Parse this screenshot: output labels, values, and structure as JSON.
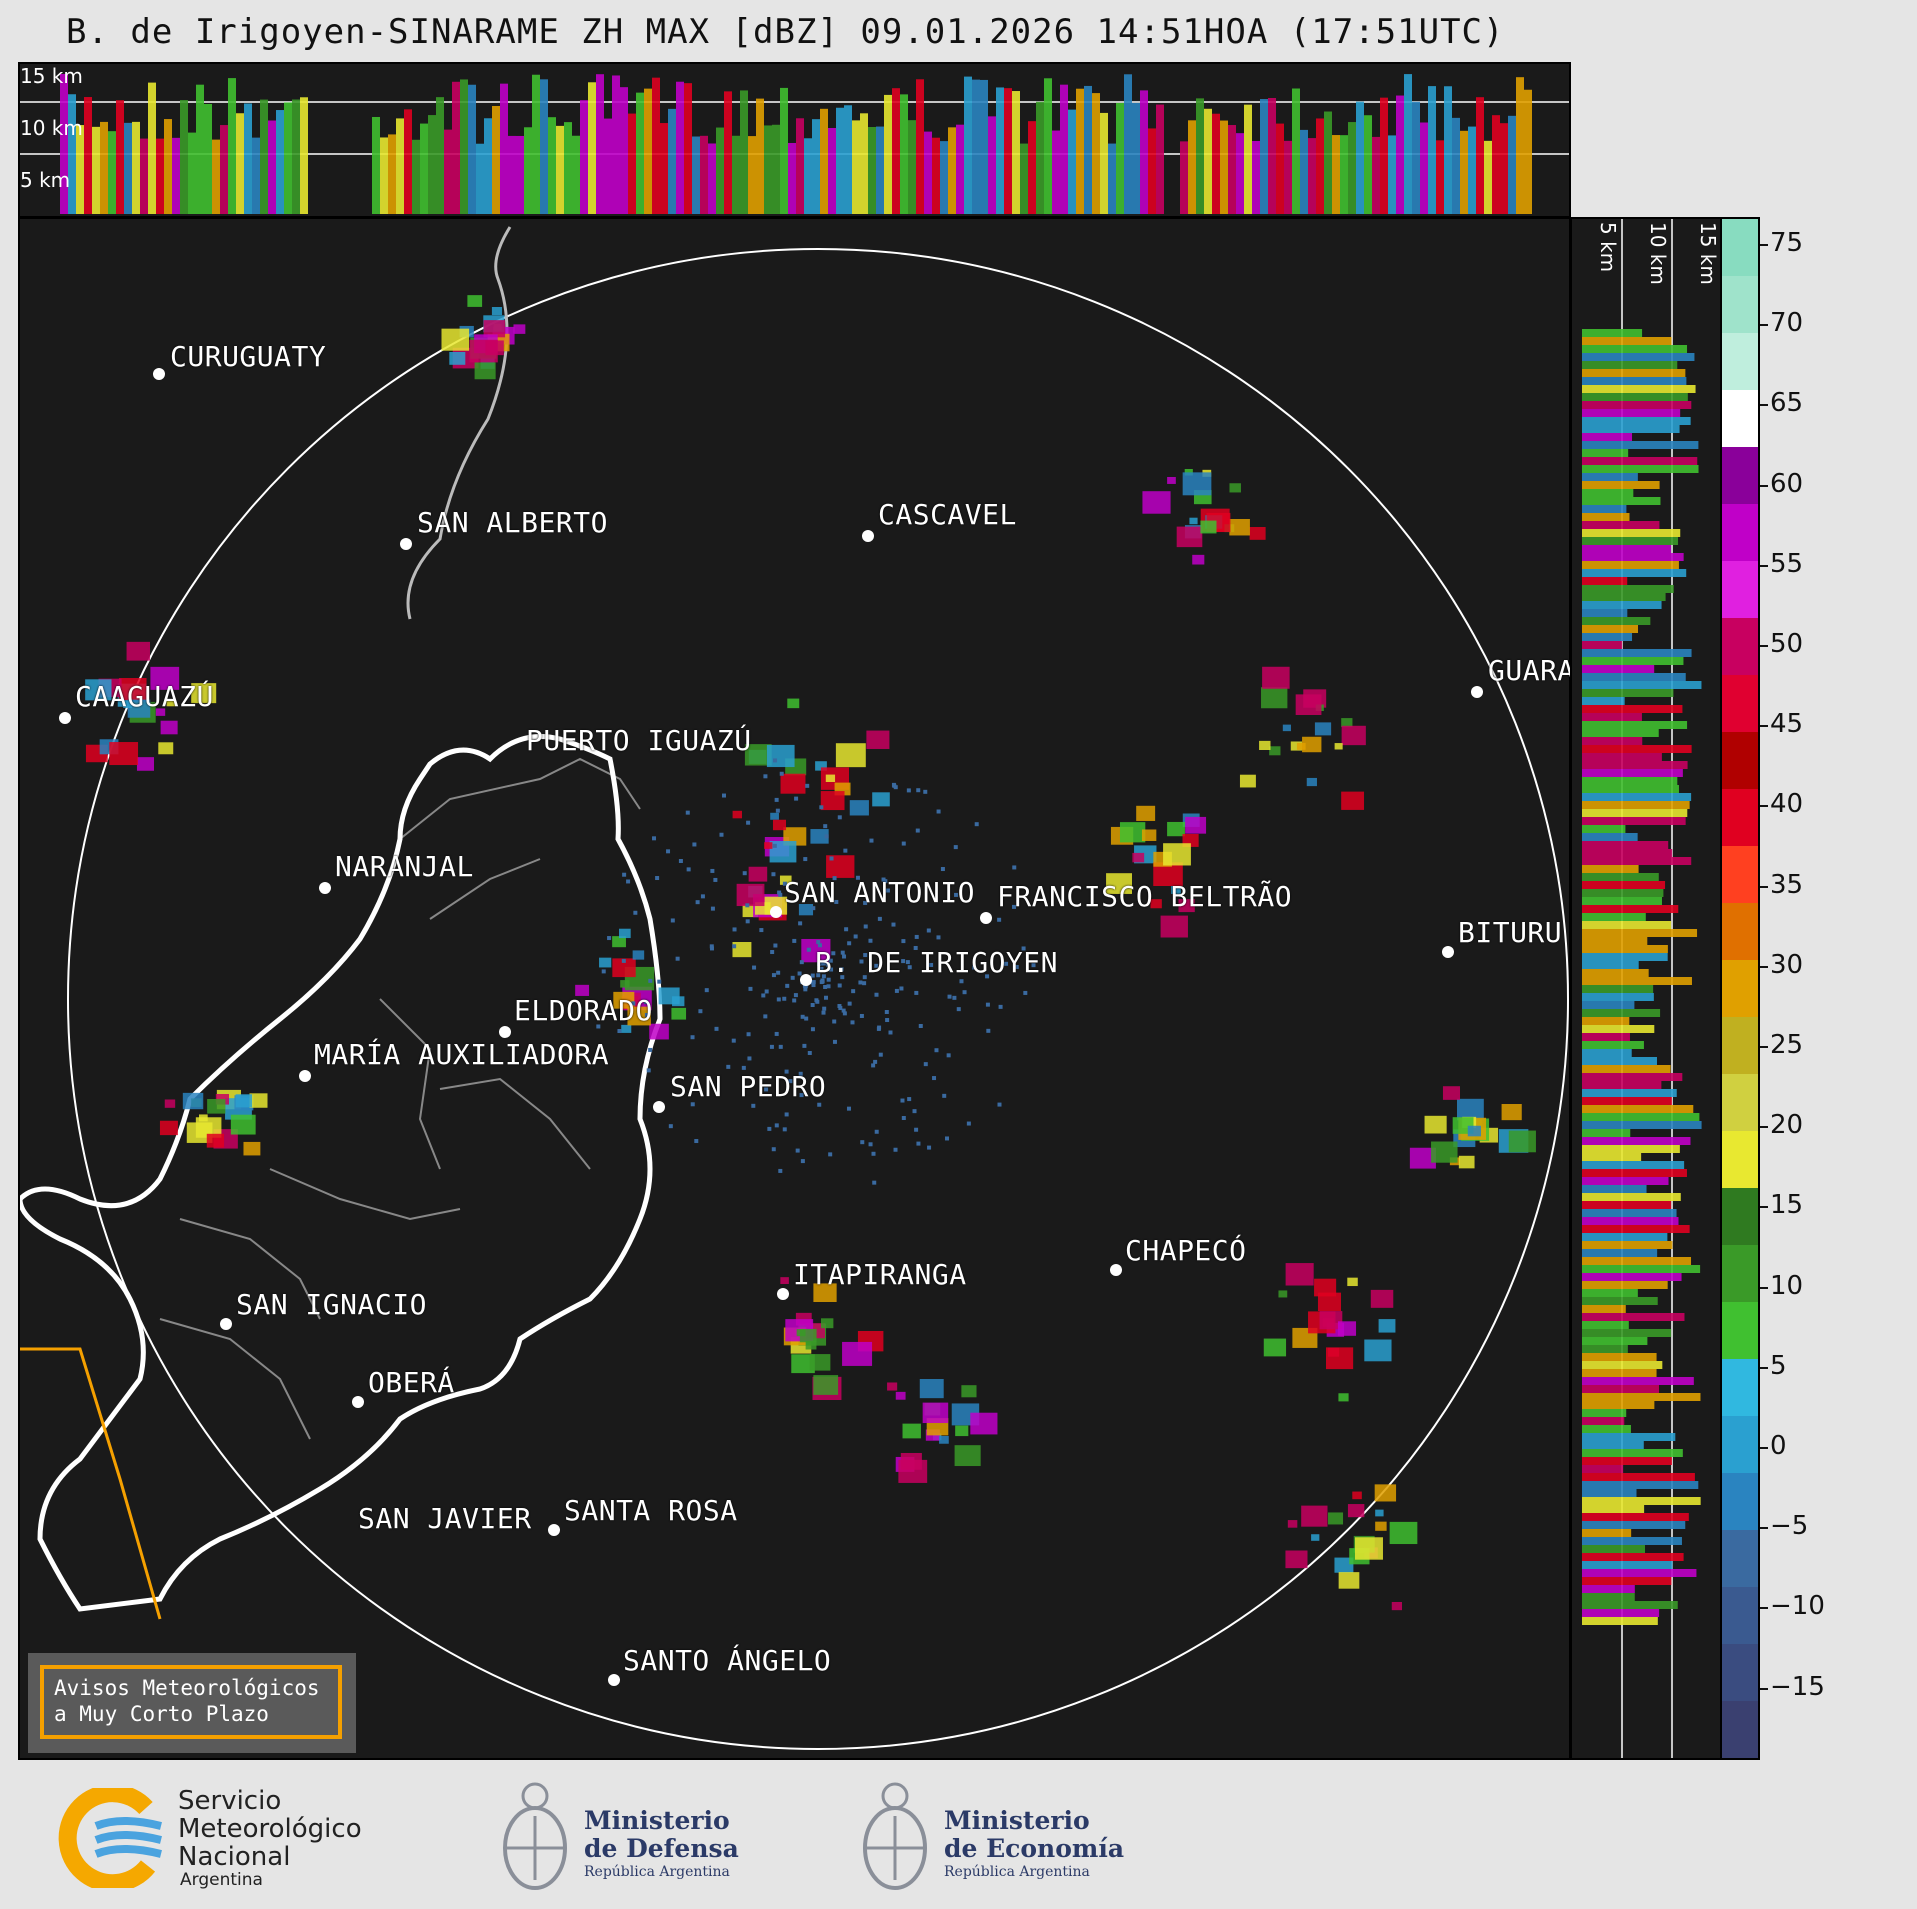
{
  "title": "B. de Irigoyen-SINARAME ZH MAX [dBZ] 09.01.2026 14:51HOA (17:51UTC)",
  "top_panel": {
    "km_labels": [
      "15 km",
      "10 km",
      "5 km"
    ]
  },
  "right_panel": {
    "km_labels": [
      "5 km",
      "10 km",
      "15 km"
    ]
  },
  "colorbar": {
    "labels": [
      "75",
      "70",
      "65",
      "60",
      "55",
      "50",
      "45",
      "40",
      "35",
      "30",
      "25",
      "20",
      "15",
      "10",
      "5",
      "0",
      "−5",
      "−10",
      "−15"
    ],
    "colors": [
      "#88dcc0",
      "#9fe3cb",
      "#bfeedd",
      "#ffffff",
      "#8a009a",
      "#c000c8",
      "#e020e0",
      "#c80060",
      "#e00030",
      "#b00000",
      "#e00020",
      "#ff4020",
      "#e07000",
      "#e0a000",
      "#c0b020",
      "#d0d040",
      "#e8e830",
      "#2f7a20",
      "#3a9a28",
      "#40c030",
      "#30b8e0",
      "#2aa0d0",
      "#2a84c0",
      "#3a6aa0",
      "#3a5a90",
      "#3a4c80",
      "#3a4070"
    ]
  },
  "cities": [
    {
      "name": "CURUGUATY"
    },
    {
      "name": "SAN ALBERTO"
    },
    {
      "name": "CASCAVEL"
    },
    {
      "name": "CAAGUAZÚ"
    },
    {
      "name": "GUARA"
    },
    {
      "name": "PUERTO IGUAZÚ"
    },
    {
      "name": "NARANJAL"
    },
    {
      "name": "SAN ANTONIO"
    },
    {
      "name": "FRANCISCO BELTRÃO"
    },
    {
      "name": "B. DE IRIGOYEN"
    },
    {
      "name": "BITURU"
    },
    {
      "name": "ELDORADO"
    },
    {
      "name": "MARÍA AUXILIADORA"
    },
    {
      "name": "SAN PEDRO"
    },
    {
      "name": "CHAPECÓ"
    },
    {
      "name": "ITAPIRANGA"
    },
    {
      "name": "SAN IGNACIO"
    },
    {
      "name": "OBERÁ"
    },
    {
      "name": "SAN JAVIER"
    },
    {
      "name": "SANTA ROSA"
    },
    {
      "name": "SANTO ÁNGELO"
    }
  ],
  "warning_box": {
    "line1": "Avisos Meteorológicos",
    "line2": "a Muy Corto Plazo"
  },
  "logos": {
    "smn": {
      "line1": "Servicio",
      "line2": "Meteorológico",
      "line3": "Nacional",
      "line4": "Argentina"
    },
    "defensa": {
      "line1": "Ministerio",
      "line2": "de Defensa",
      "line3": "República Argentina"
    },
    "economia": {
      "line1": "Ministerio",
      "line2": "de Economía",
      "line3": "República Argentina"
    }
  }
}
